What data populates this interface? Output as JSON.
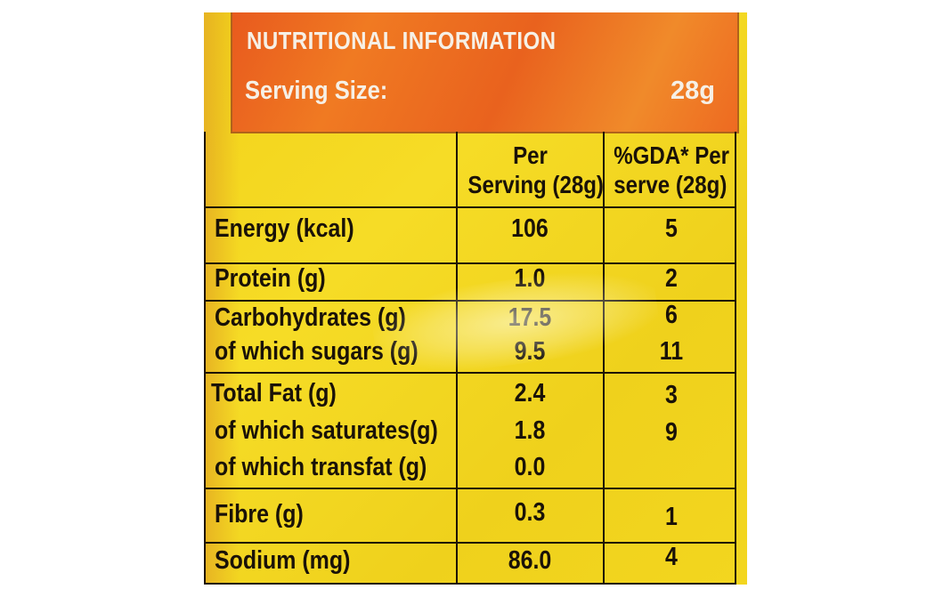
{
  "header": {
    "title": "NUTRITIONAL INFORMATION",
    "serving_label": "Serving Size:",
    "serving_value": "28g"
  },
  "columns": {
    "per_serving": [
      "Per",
      "Serving (28g)"
    ],
    "gda": [
      "%GDA* Per",
      "serve (28g)"
    ]
  },
  "rows": [
    {
      "label": "Energy (kcal)",
      "value": "106",
      "gda": "5"
    },
    {
      "label": "Protein (g)",
      "value": "1.0",
      "gda": "2"
    },
    {
      "label": "Carbohydrates (g)",
      "value": "17.5",
      "gda": "6"
    },
    {
      "label": "of which sugars (g)",
      "value": "9.5",
      "gda": "11"
    },
    {
      "label": "Total Fat (g)",
      "value": "2.4",
      "gda": "3"
    },
    {
      "label": "of which saturates(g)",
      "value": "1.8",
      "gda": "9"
    },
    {
      "label": "of which transfat (g)",
      "value": "0.0",
      "gda": ""
    },
    {
      "label": "Fibre (g)",
      "value": "0.3",
      "gda": "1"
    },
    {
      "label": "Sodium (mg)",
      "value": "86.0",
      "gda": "4"
    }
  ],
  "colors": {
    "panel_yellow": "#f3d61f",
    "header_orange": "#ec6a20",
    "ink": "#1a1208"
  }
}
